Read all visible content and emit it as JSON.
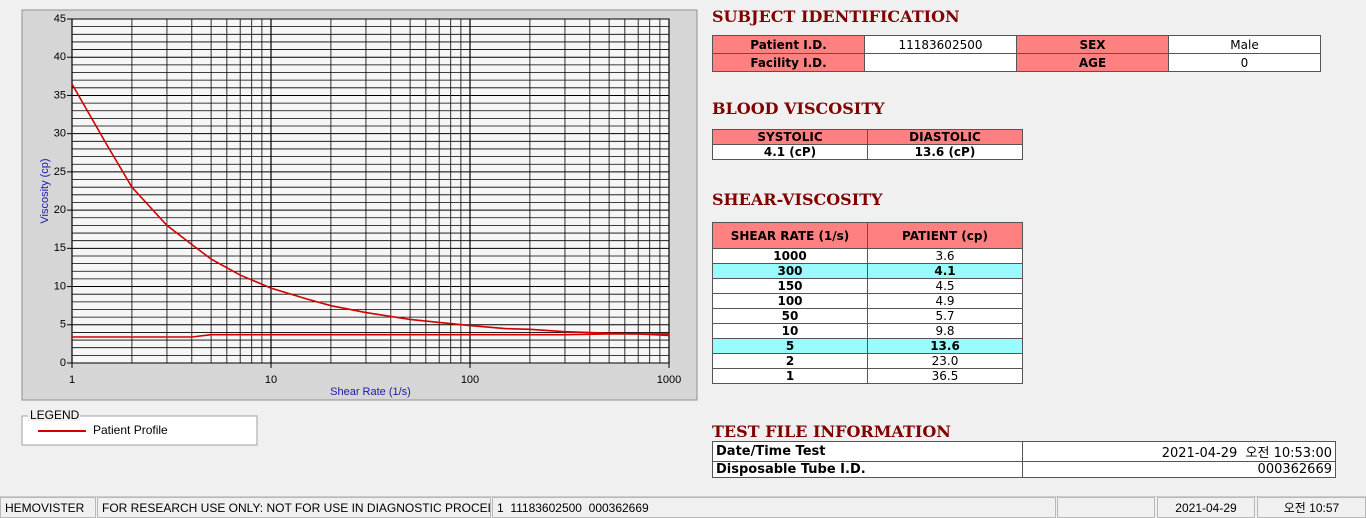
{
  "chart_data": {
    "type": "line",
    "xlabel": "Shear Rate (1/s)",
    "ylabel": "Viscosity (cp)",
    "legend_title": "LEGEND",
    "xlog": true,
    "grid": true,
    "xlim": [
      1,
      1000
    ],
    "ylim": [
      0,
      45
    ],
    "xticks": [
      1,
      10,
      100,
      1000
    ],
    "yticks": [
      0,
      5,
      10,
      15,
      20,
      25,
      30,
      35,
      40,
      45
    ],
    "x": [
      1,
      1.5,
      2,
      3,
      4,
      5,
      7,
      10,
      15,
      20,
      30,
      50,
      70,
      100,
      150,
      200,
      300,
      500,
      700,
      1000
    ],
    "series": [
      {
        "name": "Patient Profile",
        "color": "#d00000",
        "values": [
          36.5,
          28.5,
          23,
          18,
          15.5,
          13.6,
          11.5,
          9.8,
          8.4,
          7.5,
          6.6,
          5.7,
          5.3,
          4.9,
          4.5,
          4.4,
          4.1,
          3.9,
          3.8,
          3.6
        ]
      },
      {
        "color": "#d00000",
        "values": [
          3.4,
          3.4,
          3.4,
          3.4,
          3.4,
          3.7,
          3.7,
          3.7,
          3.7,
          3.7,
          3.7,
          3.7,
          3.7,
          3.7,
          3.7,
          3.7,
          3.7,
          3.8,
          3.8,
          3.8
        ]
      }
    ]
  },
  "subject": {
    "title": "SUBJECT IDENTIFICATION",
    "rows": [
      [
        {
          "label": "Patient I.D.",
          "value": "11183602500"
        },
        {
          "label": "SEX",
          "value": "Male"
        }
      ],
      [
        {
          "label": "Facility I.D."
        },
        {
          "label": "AGE",
          "value": "0"
        }
      ]
    ]
  },
  "blood_viscosity": {
    "title": "BLOOD VISCOSITY",
    "headers": [
      "SYSTOLIC",
      "DIASTOLIC"
    ],
    "values": [
      "4.1 (cP)",
      "13.6 (cP)"
    ]
  },
  "shear_viscosity": {
    "title": "SHEAR-VISCOSITY",
    "headers": [
      "SHEAR RATE (1/s)",
      "PATIENT (cp)"
    ],
    "rows": [
      [
        "1000",
        "3.6"
      ],
      [
        "300",
        "4.1"
      ],
      [
        "150",
        "4.5"
      ],
      [
        "100",
        "4.9"
      ],
      [
        "50",
        "5.7"
      ],
      [
        "10",
        "9.8"
      ],
      [
        "5",
        "13.6"
      ],
      [
        "2",
        "23.0"
      ],
      [
        "1",
        "36.5"
      ]
    ],
    "highlight_rows": [
      1,
      6
    ],
    "highlight_color": "#99fbfb"
  },
  "test_file": {
    "title": "TEST FILE INFORMATION",
    "rows": [
      [
        "Date/Time Test",
        "2021-04-29  오전 10:53:00"
      ],
      [
        "Disposable Tube I.D.",
        "000362669"
      ]
    ]
  },
  "status_bar": [
    "HEMOVISTER",
    "FOR RESEARCH USE ONLY: NOT FOR USE IN DIAGNOSTIC PROCEDURES",
    "1  11183602500  000362669",
    "2021-04-29",
    "오전 10:57"
  ]
}
